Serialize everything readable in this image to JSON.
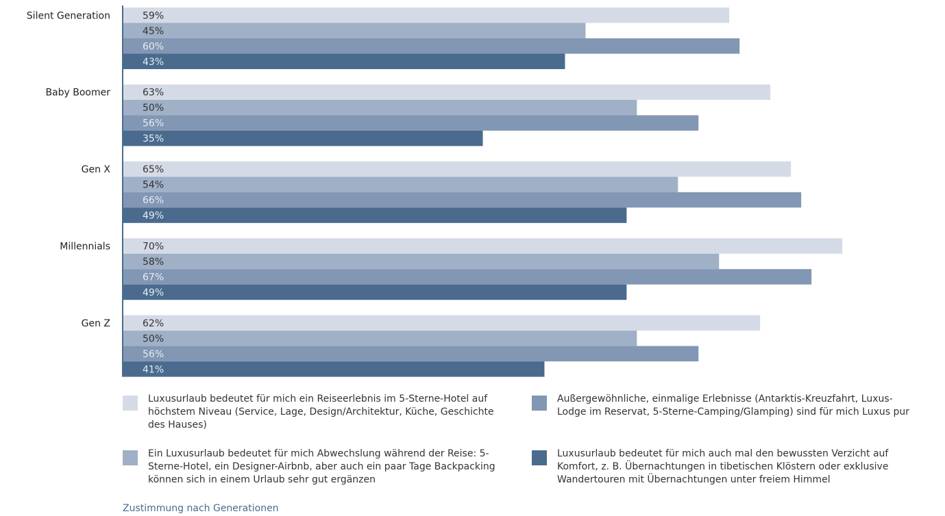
{
  "chart_data": {
    "type": "hbar",
    "categories": [
      "Silent Generation",
      "Baby Boomer",
      "Gen X",
      "Millennials",
      "Gen Z"
    ],
    "series": [
      {
        "name": "Luxusurlaub bedeutet für mich ein Reiseerlebnis im 5-Sterne-Hotel auf höchstem Niveau (Service, Lage, Design/Architektur, Küche, Geschichte des Hauses)",
        "color": "#d5dbe6",
        "values": [
          59,
          63,
          65,
          70,
          62
        ],
        "value_labels": [
          "59%",
          "63%",
          "65%",
          "70%",
          "62%"
        ]
      },
      {
        "name": "Ein Luxusurlaub bedeutet für mich Abwechslung während der Reise: 5-Sterne-Hotel, ein Designer-Airbnb, aber auch ein paar Tage Backpacking können sich in einem Urlaub sehr gut ergänzen",
        "color": "#9fb0c7",
        "values": [
          45,
          50,
          54,
          58,
          50
        ],
        "value_labels": [
          "45%",
          "50%",
          "54%",
          "58%",
          "50%"
        ]
      },
      {
        "name": "Außergewöhnliche, einmalige Erlebnisse (Antarktis-Kreuzfahrt, Luxus-Lodge im Reservat, 5-Sterne-Camping/Glamping) sind für mich Luxus pur",
        "color": "#8197b3",
        "values": [
          60,
          56,
          66,
          67,
          56
        ],
        "value_labels": [
          "60%",
          "56%",
          "66%",
          "67%",
          "56%"
        ]
      },
      {
        "name": "Luxusurlaub bedeutet für mich auch mal den bewussten Verzicht auf Komfort, z. B. Übernachtungen in tibetischen Klöstern oder exklusive Wandertouren mit Übernachtungen unter freiem Himmel",
        "color": "#4a6b8e",
        "values": [
          43,
          35,
          49,
          49,
          41
        ],
        "value_labels": [
          "43%",
          "35%",
          "49%",
          "49%",
          "41%"
        ]
      }
    ],
    "xlim": [
      0,
      80
    ],
    "note": "Zustimmung nach Generationen"
  }
}
